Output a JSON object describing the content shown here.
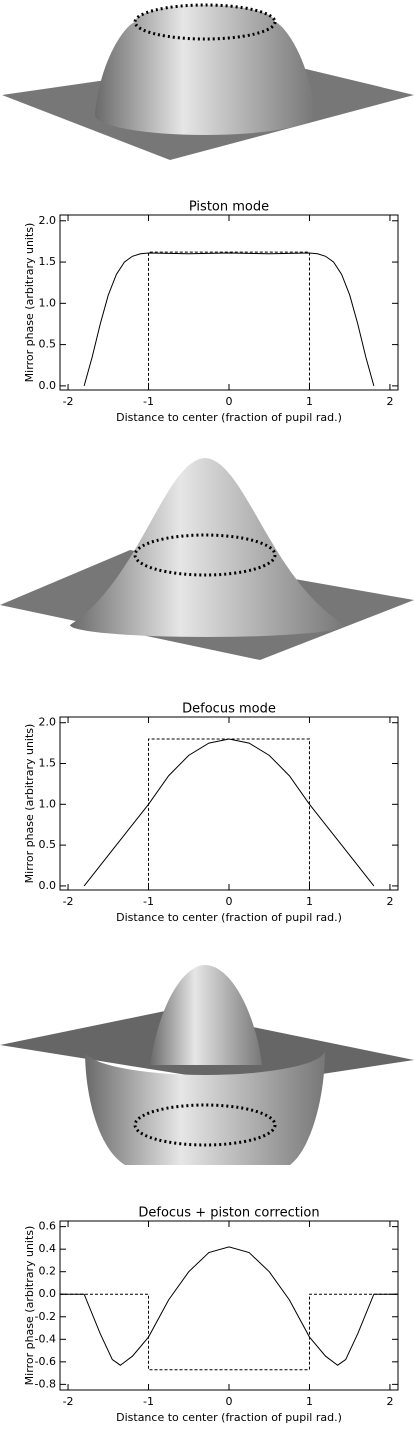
{
  "chart_data": [
    {
      "type": "line",
      "title": "Piston mode",
      "xlabel": "Distance to center (fraction of pupil rad.)",
      "ylabel": "Mirror phase (arbitrary units)",
      "xlim": [
        -2.1,
        2.1
      ],
      "ylim": [
        -0.05,
        2.07
      ],
      "xticks": [
        -2,
        -1,
        0,
        1,
        2
      ],
      "yticks": [
        {
          "value": 0,
          "label": "0.0"
        },
        {
          "value": 0.5,
          "label": "0.5"
        },
        {
          "value": 1,
          "label": "1.0"
        },
        {
          "value": 1.5,
          "label": "1.5"
        },
        {
          "value": 2,
          "label": "2.0"
        }
      ],
      "series": [
        {
          "color": "#000000",
          "style": "solid",
          "x": [
            -1.8,
            -1.7,
            -1.6,
            -1.5,
            -1.4,
            -1.3,
            -1.2,
            -1.1,
            -1.0,
            -0.5,
            0,
            0.5,
            1.0,
            1.1,
            1.2,
            1.3,
            1.4,
            1.5,
            1.6,
            1.7,
            1.8
          ],
          "values": [
            0,
            0.35,
            0.75,
            1.1,
            1.35,
            1.5,
            1.57,
            1.6,
            1.61,
            1.6,
            1.61,
            1.6,
            1.61,
            1.6,
            1.57,
            1.5,
            1.35,
            1.1,
            0.75,
            0.35,
            0
          ]
        },
        {
          "color": "#000000",
          "style": "dashed",
          "x": [
            -1,
            -1,
            1,
            1
          ],
          "values": [
            0,
            1.62,
            1.62,
            0
          ]
        }
      ]
    },
    {
      "type": "line",
      "title": "Defocus mode",
      "xlabel": "Distance to center (fraction of pupil rad.)",
      "ylabel": "Mirror phase (arbitrary units)",
      "xlim": [
        -2.1,
        2.1
      ],
      "ylim": [
        -0.05,
        2.07
      ],
      "xticks": [
        -2,
        -1,
        0,
        1,
        2
      ],
      "yticks": [
        {
          "value": 0,
          "label": "0.0"
        },
        {
          "value": 0.5,
          "label": "0.5"
        },
        {
          "value": 1,
          "label": "1.0"
        },
        {
          "value": 1.5,
          "label": "1.5"
        },
        {
          "value": 2,
          "label": "2.0"
        }
      ],
      "series": [
        {
          "color": "#000000",
          "style": "solid",
          "x": [
            -1.8,
            -1.4,
            -1,
            -0.75,
            -0.5,
            -0.25,
            0,
            0.25,
            0.5,
            0.75,
            1,
            1.4,
            1.8
          ],
          "values": [
            0,
            0.5,
            1.0,
            1.35,
            1.6,
            1.75,
            1.8,
            1.75,
            1.6,
            1.35,
            1.0,
            0.5,
            0
          ]
        },
        {
          "color": "#000000",
          "style": "dashed",
          "x": [
            -1,
            -1,
            1,
            1
          ],
          "values": [
            0,
            1.8,
            1.8,
            0
          ]
        }
      ]
    },
    {
      "type": "line",
      "title": "Defocus + piston correction",
      "xlabel": "Distance to center (fraction of pupil rad.)",
      "ylabel": "Mirror phase (arbitrary units)",
      "xlim": [
        -2.1,
        2.1
      ],
      "ylim": [
        -0.85,
        0.65
      ],
      "xticks": [
        -2,
        -1,
        0,
        1,
        2
      ],
      "yticks": [
        -0.8,
        -0.6,
        -0.4,
        -0.2,
        {
          "value": 0,
          "label": "0.0"
        },
        0.2,
        0.4,
        0.6
      ],
      "series": [
        {
          "color": "#000000",
          "style": "solid",
          "x": [
            -2.1,
            -1.8,
            -1.6,
            -1.45,
            -1.35,
            -1.2,
            -1,
            -0.75,
            -0.5,
            -0.25,
            0,
            0.25,
            0.5,
            0.75,
            1,
            1.2,
            1.35,
            1.45,
            1.6,
            1.8,
            2.1
          ],
          "values": [
            0,
            0,
            -0.35,
            -0.58,
            -0.63,
            -0.55,
            -0.38,
            -0.05,
            0.2,
            0.37,
            0.42,
            0.37,
            0.2,
            -0.05,
            -0.38,
            -0.55,
            -0.63,
            -0.58,
            -0.35,
            0,
            0
          ]
        },
        {
          "color": "#000000",
          "style": "dashed",
          "x": [
            -2.1,
            -1,
            -1,
            1,
            1,
            2.1
          ],
          "values": [
            0,
            0,
            -0.67,
            -0.67,
            0,
            0
          ]
        }
      ]
    }
  ]
}
